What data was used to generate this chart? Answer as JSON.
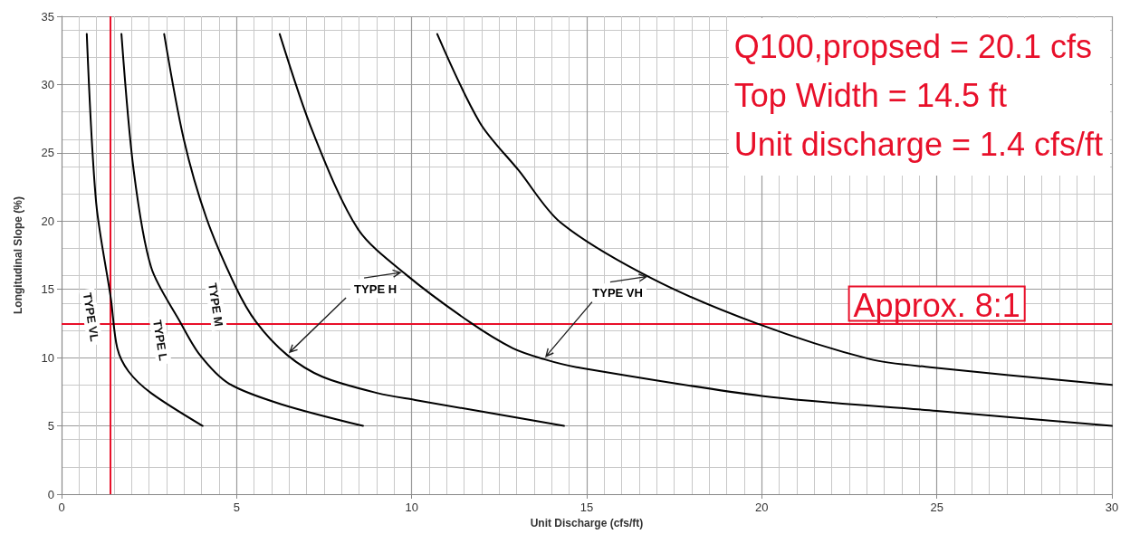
{
  "chart_data": {
    "type": "line",
    "xlabel": "Unit Discharge (cfs/ft)",
    "ylabel": "Longitudinal Slope (%)",
    "xlim": [
      0,
      30
    ],
    "xticks": [
      0,
      5,
      10,
      15,
      20,
      25,
      30
    ],
    "ylim": [
      0,
      35
    ],
    "yticks": [
      0,
      5,
      10,
      15,
      20,
      25,
      30,
      35
    ],
    "grid": true,
    "legend": false,
    "marker": "none",
    "line_style": "solid",
    "series": [
      {
        "name": "TYPE VL",
        "color": "#000000",
        "x": [
          0.72,
          0.99,
          1.41,
          1.59,
          1.91,
          2.56,
          4.03
        ],
        "values": [
          33.7,
          21.3,
          14.3,
          10.7,
          9.0,
          7.4,
          5.0
        ]
      },
      {
        "name": "TYPE L",
        "color": "#000000",
        "x": [
          1.71,
          2.06,
          2.56,
          3.39,
          3.95,
          4.78,
          6.26,
          8.61
        ],
        "values": [
          33.7,
          23.7,
          16.6,
          12.6,
          10.2,
          8.1,
          6.6,
          5.0
        ]
      },
      {
        "name": "TYPE M",
        "color": "#000000",
        "x": [
          2.93,
          3.49,
          4.14,
          4.97,
          5.56,
          6.44,
          7.45,
          9.03,
          10.1,
          14.35
        ],
        "values": [
          33.7,
          26.0,
          20.2,
          15.2,
          12.6,
          10.2,
          8.6,
          7.4,
          6.9,
          5.0
        ]
      },
      {
        "name": "TYPE H",
        "color": "#000000",
        "x": [
          6.23,
          7.18,
          8.47,
          9.83,
          11.66,
          12.88,
          13.76,
          14.71,
          20.0,
          25.0,
          30.0
        ],
        "values": [
          33.7,
          26.5,
          19.4,
          16.1,
          12.6,
          10.7,
          9.9,
          9.3,
          7.2,
          6.1,
          5.0
        ]
      },
      {
        "name": "TYPE VH",
        "color": "#000000",
        "x": [
          10.73,
          11.95,
          13.06,
          14.25,
          16.86,
          19.86,
          23.07,
          24.8,
          30.0
        ],
        "values": [
          33.7,
          27.2,
          23.7,
          19.9,
          15.8,
          12.5,
          9.9,
          9.3,
          8.0
        ]
      }
    ],
    "ref_lines": [
      {
        "axis": "x",
        "value": 1.4,
        "color": "#e8102a"
      },
      {
        "axis": "y",
        "value": 12.5,
        "color": "#e8102a"
      }
    ],
    "annotations": [
      "Q100,propsed = 20.1 cfs",
      "Top Width = 14.5 ft",
      "Unit discharge = 1.4 cfs/ft",
      {
        "text": "Approx. 8:1",
        "x": 25,
        "y": 12.5
      }
    ]
  }
}
